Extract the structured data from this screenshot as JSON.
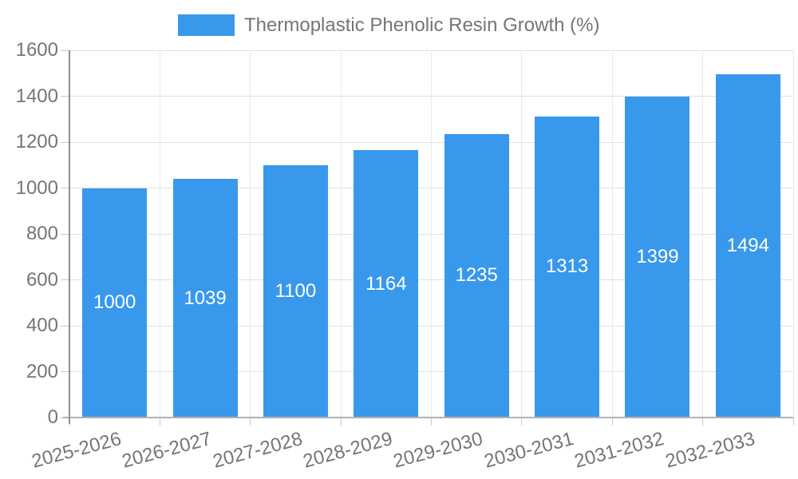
{
  "legend": {
    "label": "Thermoplastic Phenolic Resin Growth (%)"
  },
  "chart_data": {
    "type": "bar",
    "title": "Thermoplastic Phenolic Resin Growth (%)",
    "categories": [
      "2025-2026",
      "2026-2027",
      "2027-2028",
      "2028-2029",
      "2029-2030",
      "2030-2031",
      "2031-2032",
      "2032-2033"
    ],
    "values": [
      1000,
      1039,
      1100,
      1164,
      1235,
      1313,
      1399,
      1494
    ],
    "series": [
      {
        "name": "Thermoplastic Phenolic Resin Growth (%)",
        "values": [
          1000,
          1039,
          1100,
          1164,
          1235,
          1313,
          1399,
          1494
        ]
      }
    ],
    "xlabel": "",
    "ylabel": "",
    "ylim": [
      0,
      1600
    ],
    "ytick_step": 200,
    "yticks": [
      0,
      200,
      400,
      600,
      800,
      1000,
      1200,
      1400,
      1600
    ],
    "grid": true,
    "legend_position": "top",
    "x_label_rotation_deg": -15,
    "bar_color": "#3898EC",
    "bar_label_color": "#FFFFFF",
    "axis_text_color": "#757575",
    "gridline_color": "#E0E0E0"
  }
}
